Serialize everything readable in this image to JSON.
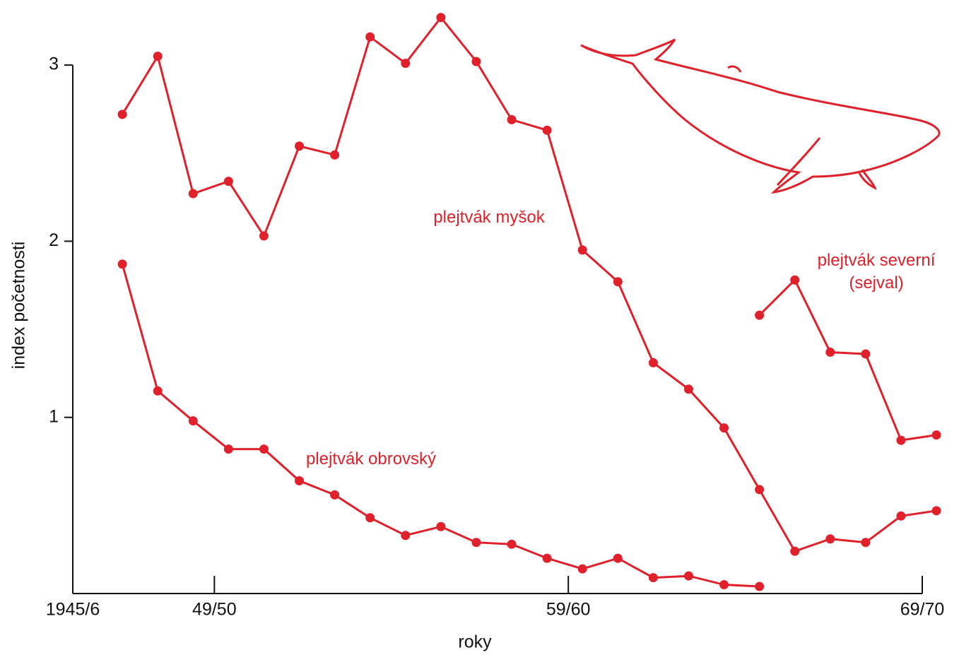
{
  "chart_data": {
    "type": "line",
    "x_label": "roky",
    "y_label": "index početnosti",
    "xlim": [
      1945,
      1969
    ],
    "xticks": [
      {
        "value": 1945,
        "label": "1945/6"
      },
      {
        "value": 1949,
        "label": "49/50"
      },
      {
        "value": 1959,
        "label": "59/60"
      },
      {
        "value": 1969,
        "label": "69/70"
      }
    ],
    "ylim": [
      0,
      3.3
    ],
    "yticks": [
      1,
      2,
      3
    ],
    "series": [
      {
        "name": "plejtvák myšok",
        "color": "#e0202a",
        "x": [
          1946.4,
          1947.4,
          1948.4,
          1949.4,
          1950.4,
          1951.4,
          1952.4,
          1953.4,
          1954.4,
          1955.4,
          1956.4,
          1957.4,
          1958.4,
          1959.4,
          1960.4,
          1961.4,
          1962.4,
          1963.4,
          1964.4,
          1965.4,
          1966.4,
          1967.4,
          1968.4,
          1969.4
        ],
        "values": [
          2.72,
          3.05,
          2.27,
          2.34,
          2.03,
          2.54,
          2.49,
          3.16,
          3.01,
          3.27,
          3.02,
          2.69,
          2.63,
          1.95,
          1.77,
          1.31,
          1.16,
          0.94,
          0.59,
          0.24,
          0.31,
          0.29,
          0.44,
          0.47
        ]
      },
      {
        "name": "plejtvák obrovský",
        "color": "#e0202a",
        "x": [
          1946.4,
          1947.4,
          1948.4,
          1949.4,
          1950.4,
          1951.4,
          1952.4,
          1953.4,
          1954.4,
          1955.4,
          1956.4,
          1957.4,
          1958.4,
          1959.4,
          1960.4,
          1961.4,
          1962.4,
          1963.4,
          1964.4
        ],
        "values": [
          1.87,
          1.15,
          0.98,
          0.82,
          0.82,
          0.64,
          0.56,
          0.43,
          0.33,
          0.38,
          0.29,
          0.28,
          0.2,
          0.14,
          0.2,
          0.09,
          0.1,
          0.05,
          0.04
        ]
      },
      {
        "name": "plejtvák severní (sejval)",
        "color": "#e0202a",
        "x": [
          1964.4,
          1965.4,
          1966.4,
          1967.4,
          1968.4,
          1969.4
        ],
        "values": [
          1.58,
          1.78,
          1.37,
          1.36,
          0.87,
          0.9
        ]
      }
    ]
  }
}
